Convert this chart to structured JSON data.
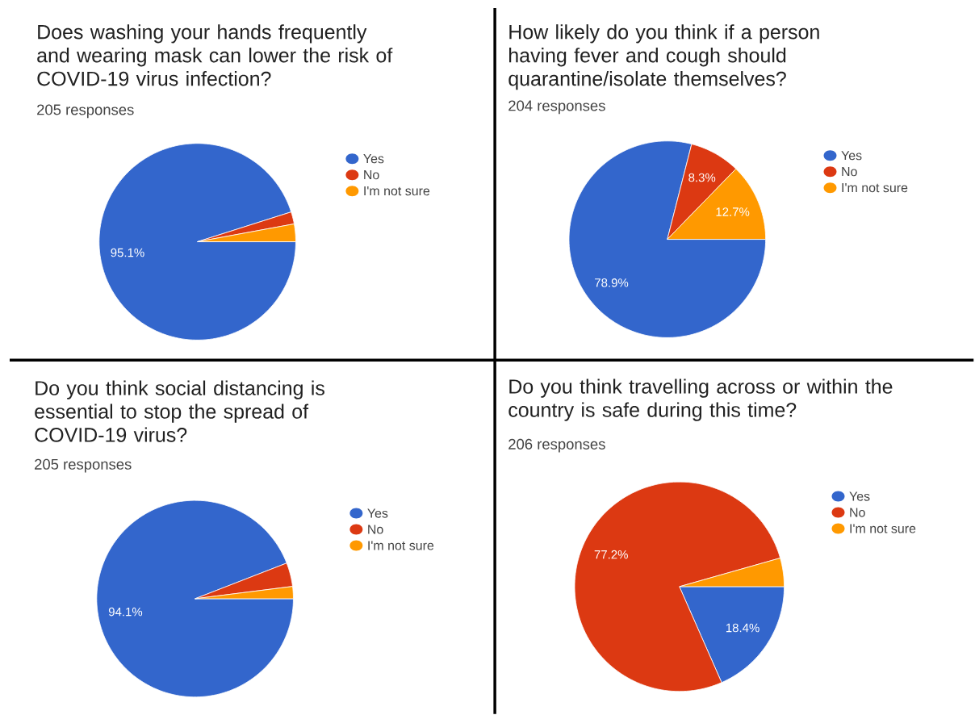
{
  "chart_data": [
    {
      "type": "pie",
      "title": "Does washing your hands frequently and wearing mask can lower the risk of COVID-19 virus infection?",
      "subtitle": "205 responses",
      "categories": [
        "Yes",
        "No",
        "I'm not sure"
      ],
      "values": [
        95.1,
        2.0,
        2.9
      ],
      "colors": [
        "#3366cc",
        "#dc3912",
        "#ff9900"
      ],
      "value_labels": [
        "95.1%",
        null,
        null
      ],
      "legend": "right"
    },
    {
      "type": "pie",
      "title": "How likely do you think if a person having fever and cough should quarantine/isolate themselves?",
      "subtitle": "204 responses",
      "categories": [
        "Yes",
        "No",
        "I'm not sure"
      ],
      "values": [
        78.9,
        8.3,
        12.7
      ],
      "colors": [
        "#3366cc",
        "#dc3912",
        "#ff9900"
      ],
      "value_labels": [
        "78.9%",
        "8.3%",
        "12.7%"
      ],
      "legend": "right"
    },
    {
      "type": "pie",
      "title": "Do you think social distancing is essential to stop the spread of COVID-19 virus?",
      "subtitle": "205 responses",
      "categories": [
        "Yes",
        "No",
        "I'm not sure"
      ],
      "values": [
        94.1,
        3.9,
        2.0
      ],
      "colors": [
        "#3366cc",
        "#dc3912",
        "#ff9900"
      ],
      "value_labels": [
        "94.1%",
        null,
        null
      ],
      "legend": "right"
    },
    {
      "type": "pie",
      "title": "Do you think travelling across or within the country is safe during this time?",
      "subtitle": "206 responses",
      "categories": [
        "Yes",
        "No",
        "I'm not sure"
      ],
      "values": [
        18.4,
        77.2,
        4.4
      ],
      "colors": [
        "#3366cc",
        "#dc3912",
        "#ff9900"
      ],
      "value_labels": [
        "18.4%",
        "77.2%",
        null
      ],
      "legend": "right"
    }
  ]
}
